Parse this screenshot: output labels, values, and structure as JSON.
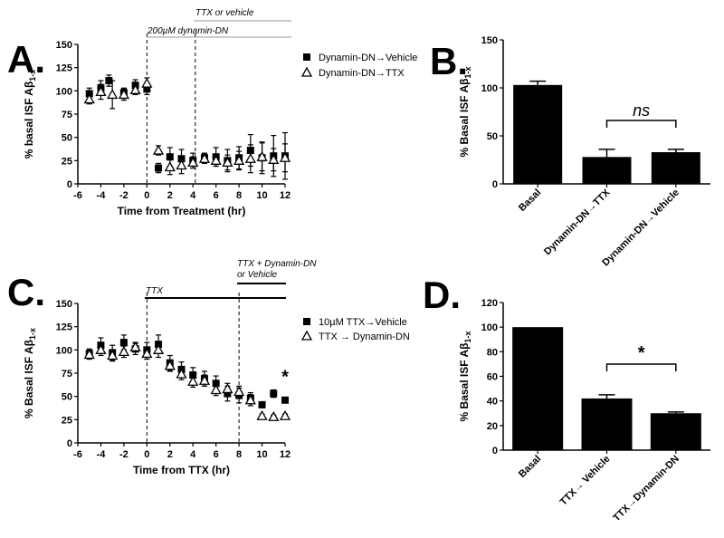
{
  "chart_data": [
    {
      "panel": "A.",
      "type": "scatter",
      "xlabel": "Time from Treatment (hr)",
      "ylabel": "% basal ISF Aβ1-x",
      "xlim": [
        -6,
        12
      ],
      "ylim": [
        0,
        150
      ],
      "xticks": [
        "-6",
        "-4",
        "-2",
        "0",
        "2",
        "4",
        "6",
        "8",
        "10",
        "12"
      ],
      "yticks": [
        "0",
        "25",
        "50",
        "75",
        "100",
        "125",
        "150"
      ],
      "annotations": [
        "TTX or vehicle",
        "200µM dynamin-DN"
      ],
      "vlines": [
        0,
        4.2
      ],
      "series": [
        {
          "name": "Dynamin-DN→Vehicle",
          "marker": "square",
          "x": [
            -5,
            -4,
            -3.3,
            -2,
            -1,
            0,
            1,
            2,
            3,
            4,
            5,
            6,
            7,
            8,
            9,
            10,
            11,
            12
          ],
          "y": [
            97,
            103,
            111,
            98,
            106,
            102,
            17,
            29,
            27,
            25,
            28,
            29,
            25,
            28,
            36,
            28,
            30,
            30
          ],
          "err": [
            6,
            8,
            6,
            5,
            6,
            6,
            5,
            10,
            10,
            8,
            5,
            10,
            12,
            12,
            17,
            17,
            22,
            25
          ]
        },
        {
          "name": "Dynamin-DN→TTX",
          "marker": "triangle",
          "x": [
            -5,
            -4,
            -3,
            -2,
            -1,
            0,
            1,
            2,
            3,
            4,
            5,
            6,
            7,
            8,
            9,
            10,
            11,
            12
          ],
          "y": [
            91,
            99,
            96,
            96,
            101,
            108,
            36,
            18,
            20,
            23,
            27,
            25,
            23,
            25,
            27,
            29,
            26,
            28
          ],
          "err": [
            5,
            8,
            15,
            6,
            5,
            6,
            5,
            8,
            9,
            6,
            5,
            6,
            8,
            10,
            15,
            15,
            12,
            15
          ]
        }
      ]
    },
    {
      "panel": "B.",
      "type": "bar",
      "ylabel": "% Basal ISF Aβ1-x",
      "ylim": [
        0,
        150
      ],
      "yticks": [
        "0",
        "50",
        "100",
        "150"
      ],
      "categories": [
        "Basal",
        "Dynamin-DN→TTX",
        "Dynamin-DN→Vehicle"
      ],
      "values": [
        103,
        28,
        33
      ],
      "err": [
        4,
        8,
        3
      ],
      "comparison": {
        "from": 1,
        "to": 2,
        "label": "ns"
      }
    },
    {
      "panel": "C.",
      "type": "scatter",
      "xlabel": "Time from TTX (hr)",
      "ylabel": "% Basal ISF Aβ1-x",
      "xlim": [
        -6,
        12
      ],
      "ylim": [
        0,
        150
      ],
      "xticks": [
        "-6",
        "-4",
        "-2",
        "0",
        "2",
        "4",
        "6",
        "8",
        "10",
        "12"
      ],
      "yticks": [
        "0",
        "25",
        "50",
        "75",
        "100",
        "125",
        "150"
      ],
      "annotations": [
        "TTX",
        "TTX + Dynamin-DN",
        "or Vehicle"
      ],
      "vlines": [
        0,
        8
      ],
      "star": "*",
      "series": [
        {
          "name": "10µM TTX→Vehicle",
          "marker": "square",
          "x": [
            -5,
            -4,
            -3,
            -2,
            -1,
            0,
            1,
            2,
            3,
            4,
            5,
            6,
            7,
            8,
            9,
            10,
            11,
            12
          ],
          "y": [
            96,
            105,
            97,
            108,
            101,
            100,
            106,
            86,
            79,
            73,
            69,
            64,
            53,
            51,
            48,
            41,
            53,
            46
          ],
          "err": [
            5,
            8,
            8,
            8,
            6,
            8,
            10,
            8,
            8,
            8,
            8,
            8,
            8,
            8,
            6,
            3,
            4,
            3
          ]
        },
        {
          "name": "TTX → Dynamin-DN",
          "marker": "triangle",
          "x": [
            -5,
            -4,
            -3,
            -2,
            -1,
            0,
            1,
            2,
            3,
            4,
            5,
            6,
            7,
            8,
            9,
            10,
            11,
            12
          ],
          "y": [
            95,
            100,
            94,
            98,
            103,
            96,
            100,
            83,
            74,
            66,
            67,
            57,
            58,
            55,
            46,
            29,
            28,
            29
          ],
          "err": [
            5,
            6,
            6,
            6,
            5,
            6,
            8,
            6,
            6,
            6,
            6,
            6,
            6,
            6,
            6,
            2,
            2,
            2
          ]
        }
      ]
    },
    {
      "panel": "D.",
      "type": "bar",
      "ylabel": "% Basal ISF Aβ1-x",
      "ylim": [
        0,
        120
      ],
      "yticks": [
        "0",
        "20",
        "40",
        "60",
        "80",
        "100",
        "120"
      ],
      "categories": [
        "Basal",
        "TTX→ Vehicle",
        "TTX→Dynamin-DN"
      ],
      "values": [
        100,
        42,
        30
      ],
      "err": [
        0,
        3,
        1
      ],
      "comparison": {
        "from": 1,
        "to": 2,
        "label": "*"
      }
    }
  ]
}
